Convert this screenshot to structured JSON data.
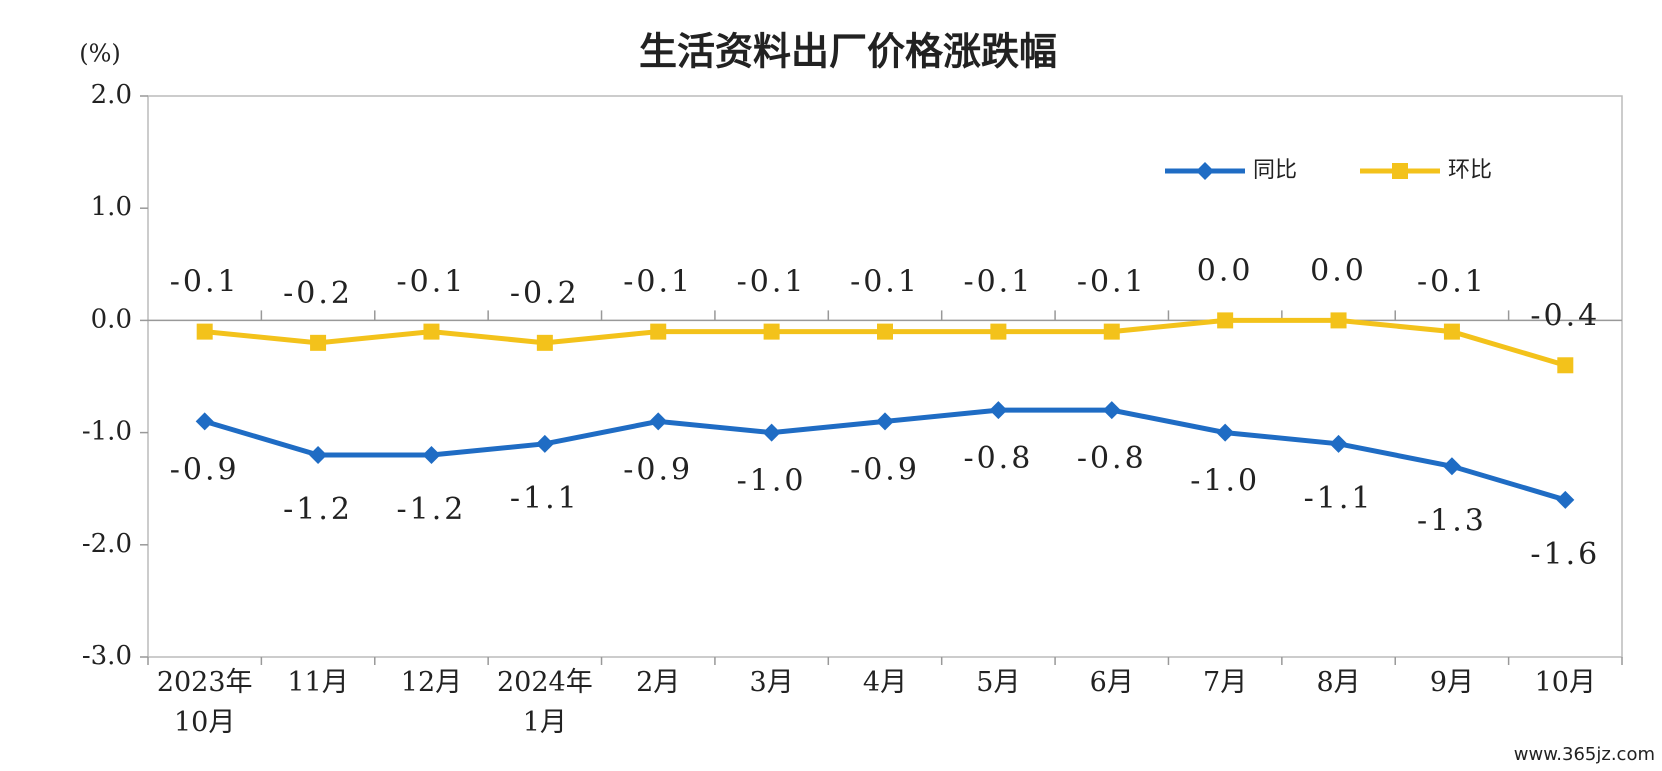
{
  "chart_data": {
    "type": "line",
    "title": "生活资料出厂价格涨跌幅",
    "y_label": "(%)",
    "watermark": "www.365jz.com",
    "categories": [
      "2023年\n10月",
      "11月",
      "12月",
      "2024年\n1月",
      "2月",
      "3月",
      "4月",
      "5月",
      "6月",
      "7月",
      "8月",
      "9月",
      "10月"
    ],
    "series": [
      {
        "name": "同比",
        "color": "#1f6cc4",
        "marker": "diamond",
        "label_position": "below",
        "values": [
          -0.9,
          -1.2,
          -1.2,
          -1.1,
          -0.9,
          -1.0,
          -0.9,
          -0.8,
          -0.8,
          -1.0,
          -1.1,
          -1.3,
          -1.6
        ],
        "value_labels": [
          "-0.9",
          "-1.2",
          "-1.2",
          "-1.1",
          "-0.9",
          "-1.0",
          "-0.9",
          "-0.8",
          "-0.8",
          "-1.0",
          "-1.1",
          "-1.3",
          "-1.6"
        ]
      },
      {
        "name": "环比",
        "color": "#f3c21b",
        "marker": "square",
        "label_position": "above",
        "values": [
          -0.1,
          -0.2,
          -0.1,
          -0.2,
          -0.1,
          -0.1,
          -0.1,
          -0.1,
          -0.1,
          0.0,
          0.0,
          -0.1,
          -0.4
        ],
        "value_labels": [
          "-0.1",
          "-0.2",
          "-0.1",
          "-0.2",
          "-0.1",
          "-0.1",
          "-0.1",
          "-0.1",
          "-0.1",
          "0.0",
          "0.0",
          "-0.1",
          "-0.4"
        ]
      }
    ],
    "ylim": [
      -3,
      2
    ],
    "yticks": [
      {
        "value": -3,
        "label": "-3.0"
      },
      {
        "value": -2,
        "label": "-2.0"
      },
      {
        "value": -1,
        "label": "-1.0"
      },
      {
        "value": 0,
        "label": "0.0"
      },
      {
        "value": 1,
        "label": "1.0"
      },
      {
        "value": 2,
        "label": "2.0"
      }
    ],
    "legend": "top-right"
  }
}
